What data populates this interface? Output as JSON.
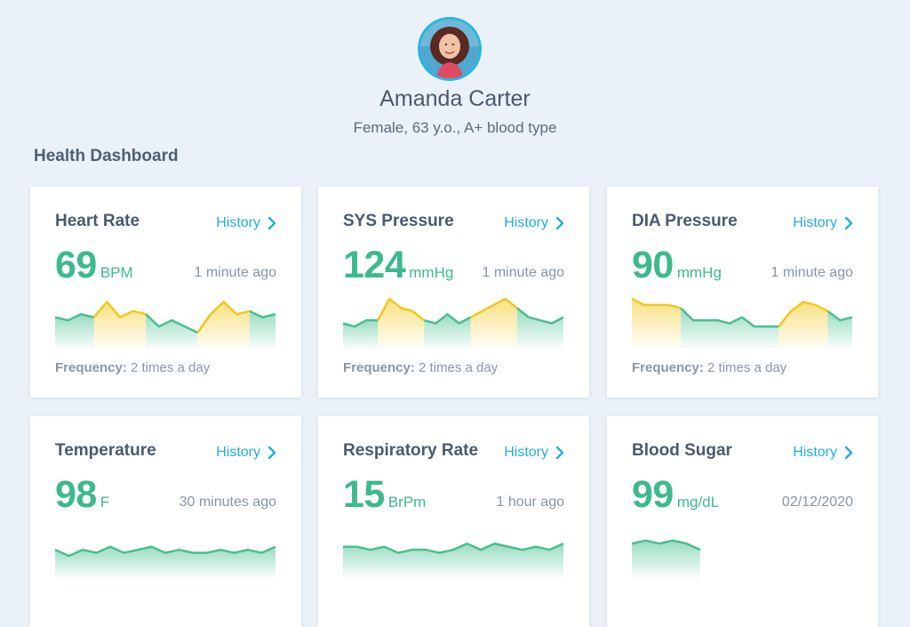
{
  "profile": {
    "name": "Amanda Carter",
    "details": "Female, 63 y.o., A+ blood type"
  },
  "section_title": "Health Dashboard",
  "colors": {
    "accent": "#22aee0",
    "value_green": "#3dba8c",
    "sparkline_green": "#47c08f",
    "sparkline_yellow": "#f2c81b",
    "background": "#eaf1f8"
  },
  "cards": [
    {
      "title": "Heart Rate",
      "history_label": "History",
      "value": "69",
      "unit": "BPM",
      "time": "1 minute ago",
      "frequency_label": "Frequency:",
      "frequency_value": "2 times a day",
      "trend": [
        {
          "v": 4,
          "c": "g"
        },
        {
          "v": 3,
          "c": "g"
        },
        {
          "v": 5,
          "c": "g"
        },
        {
          "v": 4,
          "c": "g"
        },
        {
          "v": 9,
          "c": "y"
        },
        {
          "v": 4,
          "c": "y"
        },
        {
          "v": 6,
          "c": "y"
        },
        {
          "v": 5,
          "c": "y"
        },
        {
          "v": 1,
          "c": "g"
        },
        {
          "v": 3,
          "c": "g"
        },
        {
          "v": 1,
          "c": "g"
        },
        {
          "v": -1,
          "c": "g"
        },
        {
          "v": 5,
          "c": "y"
        },
        {
          "v": 9,
          "c": "y"
        },
        {
          "v": 5,
          "c": "y"
        },
        {
          "v": 6,
          "c": "y"
        },
        {
          "v": 4,
          "c": "g"
        },
        {
          "v": 5,
          "c": "g"
        }
      ]
    },
    {
      "title": "SYS Pressure",
      "history_label": "History",
      "value": "124",
      "unit": "mmHg",
      "time": "1 minute ago",
      "frequency_label": "Frequency:",
      "frequency_value": "2 times a day",
      "trend": [
        {
          "v": 2,
          "c": "g"
        },
        {
          "v": 1,
          "c": "g"
        },
        {
          "v": 3,
          "c": "g"
        },
        {
          "v": 3,
          "c": "g"
        },
        {
          "v": 10,
          "c": "y"
        },
        {
          "v": 7,
          "c": "y"
        },
        {
          "v": 6,
          "c": "y"
        },
        {
          "v": 3,
          "c": "y"
        },
        {
          "v": 2,
          "c": "g"
        },
        {
          "v": 5,
          "c": "g"
        },
        {
          "v": 2,
          "c": "g"
        },
        {
          "v": 4,
          "c": "g"
        },
        {
          "v": 6,
          "c": "y"
        },
        {
          "v": 8,
          "c": "y"
        },
        {
          "v": 10,
          "c": "y"
        },
        {
          "v": 7,
          "c": "y"
        },
        {
          "v": 4,
          "c": "g"
        },
        {
          "v": 3,
          "c": "g"
        },
        {
          "v": 2,
          "c": "g"
        },
        {
          "v": 4,
          "c": "g"
        }
      ]
    },
    {
      "title": "DIA Pressure",
      "history_label": "History",
      "value": "90",
      "unit": "mmHg",
      "time": "1 minute ago",
      "frequency_label": "Frequency:",
      "frequency_value": "2 times a day",
      "trend": [
        {
          "v": 10,
          "c": "y"
        },
        {
          "v": 8,
          "c": "y"
        },
        {
          "v": 8,
          "c": "y"
        },
        {
          "v": 8,
          "c": "y"
        },
        {
          "v": 7,
          "c": "y"
        },
        {
          "v": 3,
          "c": "g"
        },
        {
          "v": 3,
          "c": "g"
        },
        {
          "v": 3,
          "c": "g"
        },
        {
          "v": 2,
          "c": "g"
        },
        {
          "v": 4,
          "c": "g"
        },
        {
          "v": 1,
          "c": "g"
        },
        {
          "v": 1,
          "c": "g"
        },
        {
          "v": 1,
          "c": "g"
        },
        {
          "v": 6,
          "c": "y"
        },
        {
          "v": 9,
          "c": "y"
        },
        {
          "v": 8,
          "c": "y"
        },
        {
          "v": 6,
          "c": "y"
        },
        {
          "v": 3,
          "c": "g"
        },
        {
          "v": 4,
          "c": "g"
        }
      ]
    },
    {
      "title": "Temperature",
      "history_label": "History",
      "value": "98",
      "unit": "F",
      "time": "30 minutes ago",
      "frequency_label": "",
      "frequency_value": "",
      "trend": [
        {
          "v": 3,
          "c": "g"
        },
        {
          "v": 1,
          "c": "g"
        },
        {
          "v": 3,
          "c": "g"
        },
        {
          "v": 2,
          "c": "g"
        },
        {
          "v": 4,
          "c": "g"
        },
        {
          "v": 2,
          "c": "g"
        },
        {
          "v": 3,
          "c": "g"
        },
        {
          "v": 4,
          "c": "g"
        },
        {
          "v": 2,
          "c": "g"
        },
        {
          "v": 3,
          "c": "g"
        },
        {
          "v": 2,
          "c": "g"
        },
        {
          "v": 2,
          "c": "g"
        },
        {
          "v": 3,
          "c": "g"
        },
        {
          "v": 2,
          "c": "g"
        },
        {
          "v": 3,
          "c": "g"
        },
        {
          "v": 2,
          "c": "g"
        },
        {
          "v": 4,
          "c": "g"
        }
      ]
    },
    {
      "title": "Respiratory Rate",
      "history_label": "History",
      "value": "15",
      "unit": "BrPm",
      "time": "1 hour ago",
      "frequency_label": "",
      "frequency_value": "",
      "trend": [
        {
          "v": 4,
          "c": "g"
        },
        {
          "v": 4,
          "c": "g"
        },
        {
          "v": 3,
          "c": "g"
        },
        {
          "v": 4,
          "c": "g"
        },
        {
          "v": 2,
          "c": "g"
        },
        {
          "v": 3,
          "c": "g"
        },
        {
          "v": 3,
          "c": "g"
        },
        {
          "v": 2,
          "c": "g"
        },
        {
          "v": 3,
          "c": "g"
        },
        {
          "v": 5,
          "c": "g"
        },
        {
          "v": 3,
          "c": "g"
        },
        {
          "v": 5,
          "c": "g"
        },
        {
          "v": 4,
          "c": "g"
        },
        {
          "v": 3,
          "c": "g"
        },
        {
          "v": 4,
          "c": "g"
        },
        {
          "v": 3,
          "c": "g"
        },
        {
          "v": 5,
          "c": "g"
        }
      ]
    },
    {
      "title": "Blood Sugar",
      "history_label": "History",
      "value": "99",
      "unit": "mg/dL",
      "time": "02/12/2020",
      "frequency_label": "",
      "frequency_value": "",
      "trend": [
        {
          "v": 5,
          "c": "g"
        },
        {
          "v": 6,
          "c": "g"
        },
        {
          "v": 5,
          "c": "g"
        },
        {
          "v": 6,
          "c": "g"
        },
        {
          "v": 5,
          "c": "g"
        },
        {
          "v": 3,
          "c": "g"
        }
      ],
      "trend_span": 0.31
    }
  ]
}
